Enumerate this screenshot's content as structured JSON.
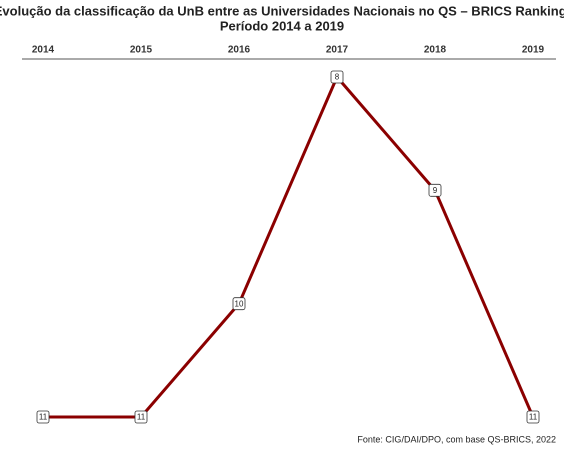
{
  "chart_data": {
    "type": "line",
    "title": "Evolução da classificação da UnB entre as Universidades Nacionais no QS – BRICS Ranking.",
    "subtitle": "Período 2014 a 2019",
    "categories": [
      "2014",
      "2015",
      "2016",
      "2017",
      "2018",
      "2019"
    ],
    "values": [
      11,
      11,
      10,
      8,
      9,
      11
    ],
    "color": "#8b0000",
    "y_inverted": true,
    "source": "Fonte: CIG/DAI/DPO, com base QS-BRICS, 2022"
  }
}
